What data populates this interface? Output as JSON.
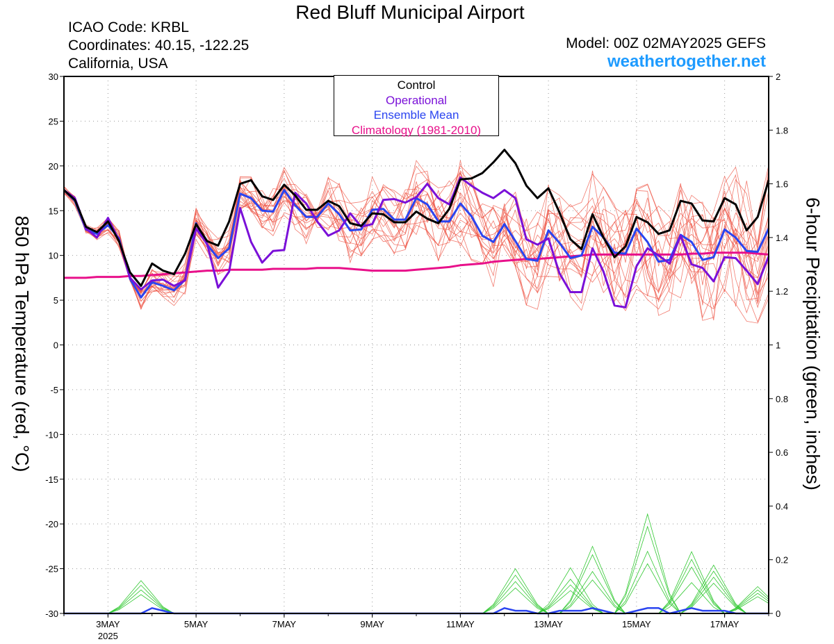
{
  "header": {
    "title": "Red Bluff Municipal Airport",
    "icao": "ICAO Code: KRBL",
    "coords": "Coordinates: 40.15, -122.25",
    "location": "California, USA",
    "model": "Model: 00Z 02MAY2025 GEFS",
    "site": "weathertogether.net"
  },
  "colors": {
    "control": "#000000",
    "operational": "#7a10d8",
    "ensemble_mean": "#2a44f0",
    "climatology": "#e8108a",
    "members": "#ee5040",
    "precip": "#30c830",
    "site_link": "#1e9bff"
  },
  "chart_data": {
    "type": "line",
    "ylabel_left": "850 hPa Temperature (red, °C)",
    "ylabel_right": "6-hour Precipitation (green, inches)",
    "ylim_left": [
      -30,
      30
    ],
    "ylim_right": [
      0,
      2
    ],
    "yticks_left": [
      "30",
      "25",
      "20",
      "15",
      "10",
      "5",
      "0",
      "-5",
      "-10",
      "-15",
      "-20",
      "-25",
      "-30"
    ],
    "yticks_right": [
      "2",
      "1.8",
      "1.6",
      "1.4",
      "1.2",
      "1",
      "0.8",
      "0.6",
      "0.4",
      "0.2",
      "0"
    ],
    "xlim": [
      "2025-05-02 00Z",
      "2025-05-18 00Z"
    ],
    "x_step_hours": 6,
    "xticks": [
      {
        "label": "3MAY",
        "sub": "2025",
        "day": 1
      },
      {
        "label": "5MAY",
        "day": 3
      },
      {
        "label": "7MAY",
        "day": 5
      },
      {
        "label": "9MAY",
        "day": 7
      },
      {
        "label": "11MAY",
        "day": 9
      },
      {
        "label": "13MAY",
        "day": 11
      },
      {
        "label": "15MAY",
        "day": 13
      },
      {
        "label": "17MAY",
        "day": 15
      }
    ],
    "grid": true,
    "legend_placement": "top-center",
    "legend": [
      "Control",
      "Operational",
      "Ensemble Mean",
      "Climatology (1981-2010)"
    ],
    "series": [
      {
        "name": "Control",
        "values": [
          17.3,
          16.2,
          13.2,
          12.6,
          13.8,
          11.6,
          8.1,
          6.6,
          9.1,
          8.3,
          7.9,
          10.2,
          13.5,
          11.6,
          11.1,
          13.8,
          18.0,
          18.4,
          16.6,
          16.2,
          17.9,
          16.7,
          15.1,
          15.1,
          16.1,
          15.5,
          13.6,
          13.3,
          14.7,
          14.6,
          13.7,
          13.7,
          14.9,
          14.1,
          13.6,
          15.2,
          18.5,
          18.6,
          19.2,
          20.4,
          21.8,
          20.3,
          17.8,
          16.4,
          17.5,
          14.8,
          11.8,
          10.7,
          14.6,
          12.0,
          9.8,
          11.0,
          14.3,
          13.7,
          12.4,
          12.8,
          16.1,
          15.8,
          13.9,
          13.8,
          16.4,
          15.7,
          12.8,
          14.3,
          18.4
        ]
      },
      {
        "name": "Operational",
        "values": [
          17.3,
          16.4,
          13.0,
          12.0,
          14.2,
          11.7,
          7.5,
          6.2,
          7.2,
          7.3,
          6.6,
          7.2,
          13.0,
          11.3,
          6.4,
          8.2,
          15.3,
          11.5,
          9.2,
          10.5,
          10.6,
          17.0,
          15.8,
          13.8,
          12.2,
          12.8,
          14.7,
          13.2,
          13.5,
          16.2,
          16.3,
          15.9,
          16.5,
          18.0,
          16.4,
          15.7,
          18.7,
          17.8,
          17.0,
          16.4,
          17.3,
          16.4,
          11.8,
          11.2,
          11.9,
          8.0,
          5.9,
          5.9,
          10.8,
          8.2,
          4.4,
          4.2,
          8.8,
          10.8,
          10.0,
          9.1,
          12.2,
          9.0,
          8.6,
          7.1,
          9.8,
          9.7,
          8.3,
          6.8,
          9.9
        ]
      },
      {
        "name": "Ensemble Mean",
        "values": [
          17.3,
          16.1,
          12.9,
          12.4,
          13.4,
          11.9,
          7.4,
          5.3,
          7.0,
          6.6,
          6.1,
          7.3,
          13.6,
          11.2,
          9.7,
          10.8,
          16.9,
          16.4,
          15.0,
          14.9,
          17.3,
          15.6,
          14.3,
          14.3,
          15.8,
          14.6,
          12.8,
          12.9,
          15.1,
          15.2,
          14.0,
          14.0,
          16.4,
          15.7,
          13.8,
          13.8,
          15.8,
          14.4,
          12.2,
          11.5,
          13.5,
          11.6,
          9.6,
          9.4,
          12.8,
          11.4,
          9.7,
          10.0,
          13.2,
          12.0,
          10.3,
          10.2,
          13.0,
          11.5,
          9.3,
          9.5,
          12.3,
          11.5,
          9.5,
          9.8,
          12.9,
          12.0,
          10.5,
          10.4,
          13.0
        ]
      },
      {
        "name": "Climatology (1981-2010)",
        "values": [
          7.5,
          7.5,
          7.5,
          7.6,
          7.6,
          7.6,
          7.7,
          7.7,
          7.8,
          7.9,
          8.0,
          8.1,
          8.2,
          8.3,
          8.3,
          8.4,
          8.4,
          8.4,
          8.4,
          8.5,
          8.5,
          8.5,
          8.5,
          8.6,
          8.6,
          8.6,
          8.5,
          8.4,
          8.3,
          8.3,
          8.3,
          8.3,
          8.4,
          8.5,
          8.6,
          8.7,
          8.9,
          9.0,
          9.1,
          9.3,
          9.4,
          9.5,
          9.6,
          9.6,
          9.7,
          9.8,
          9.9,
          10.0,
          10.1,
          10.1,
          10.1,
          10.1,
          10.1,
          10.1,
          10.1,
          10.1,
          10.1,
          10.2,
          10.2,
          10.3,
          10.3,
          10.3,
          10.3,
          10.2,
          10.1
        ]
      }
    ],
    "precip_series": [
      {
        "name": "Ensemble Mean",
        "values": [
          0,
          0,
          0,
          0,
          0,
          0,
          0,
          0,
          0.02,
          0.01,
          0,
          0,
          0,
          0,
          0,
          0,
          0,
          0,
          0,
          0,
          0,
          0,
          0,
          0,
          0,
          0,
          0,
          0,
          0,
          0,
          0,
          0,
          0,
          0,
          0,
          0,
          0,
          0,
          0,
          0,
          0.02,
          0.01,
          0.01,
          0,
          0,
          0.01,
          0.01,
          0.01,
          0.02,
          0.01,
          0,
          0,
          0.01,
          0.02,
          0.02,
          0,
          0.01,
          0.02,
          0.01,
          0.01,
          0.01,
          0,
          0,
          0,
          0
        ]
      }
    ]
  }
}
